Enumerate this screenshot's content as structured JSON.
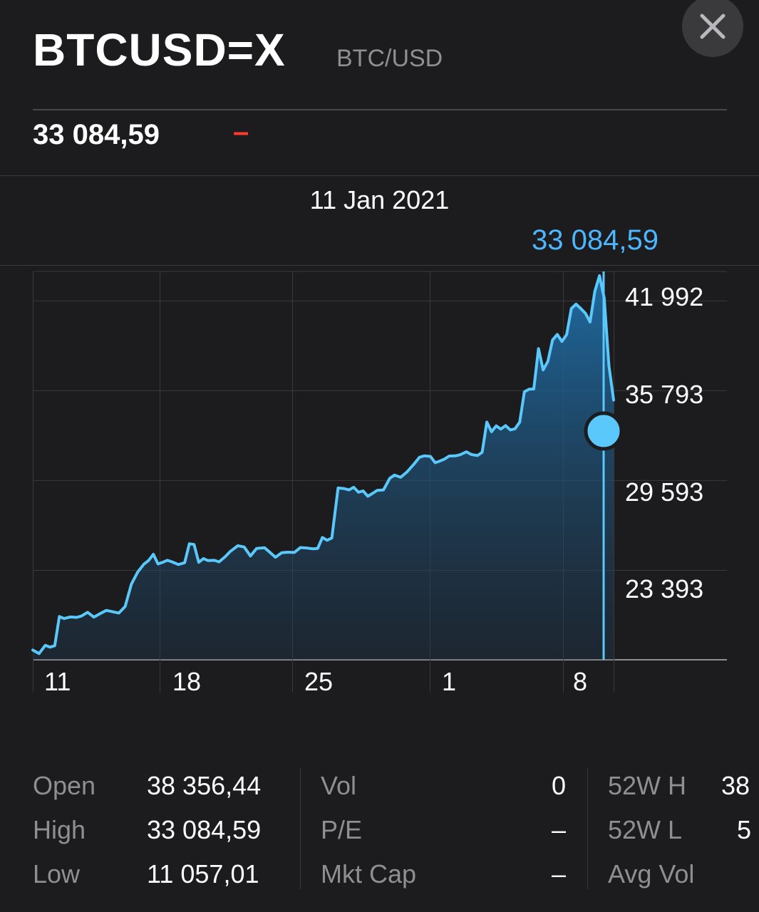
{
  "header": {
    "symbol": "BTCUSD=X",
    "company": "BTC/USD",
    "price": "33 084,59",
    "change": "–"
  },
  "selection": {
    "date": "11 Jan 2021",
    "value": "33 084,59"
  },
  "colors": {
    "accent": "#4db6ff",
    "negative": "#ff3b30",
    "background": "#1c1c1e"
  },
  "chart_data": {
    "type": "area",
    "x_tick_labels": [
      "11",
      "18",
      "25",
      "1",
      "8"
    ],
    "y_tick_labels": [
      "41 992",
      "35 793",
      "29 593",
      "23 393"
    ],
    "y_ticks": [
      41992,
      35793,
      29593,
      23393
    ],
    "ylim": [
      17193,
      44000
    ],
    "xlim_days": [
      0,
      36
    ],
    "grid": true,
    "selected_point": {
      "date": "11 Jan 2021",
      "value": 33084.59
    },
    "series": [
      {
        "values": [
          [
            0.0,
            17860
          ],
          [
            0.4,
            17620
          ],
          [
            0.8,
            18190
          ],
          [
            1.1,
            18070
          ],
          [
            1.4,
            18160
          ],
          [
            1.7,
            20180
          ],
          [
            2.0,
            20040
          ],
          [
            2.4,
            20150
          ],
          [
            2.8,
            20120
          ],
          [
            3.1,
            20210
          ],
          [
            3.5,
            20470
          ],
          [
            3.9,
            20140
          ],
          [
            4.3,
            20380
          ],
          [
            4.7,
            20600
          ],
          [
            5.1,
            20510
          ],
          [
            5.5,
            20420
          ],
          [
            5.9,
            20870
          ],
          [
            6.3,
            22420
          ],
          [
            6.7,
            23250
          ],
          [
            7.1,
            23800
          ],
          [
            7.4,
            24050
          ],
          [
            7.7,
            24480
          ],
          [
            8.0,
            23810
          ],
          [
            8.3,
            23920
          ],
          [
            8.6,
            24060
          ],
          [
            8.9,
            23950
          ],
          [
            9.3,
            23770
          ],
          [
            9.7,
            23890
          ],
          [
            10.0,
            25200
          ],
          [
            10.3,
            25150
          ],
          [
            10.6,
            23920
          ],
          [
            10.9,
            24180
          ],
          [
            11.2,
            24040
          ],
          [
            11.6,
            24060
          ],
          [
            11.9,
            23950
          ],
          [
            12.3,
            24320
          ],
          [
            12.6,
            24660
          ],
          [
            13.1,
            25070
          ],
          [
            13.5,
            24980
          ],
          [
            13.9,
            24360
          ],
          [
            14.3,
            24880
          ],
          [
            14.8,
            24930
          ],
          [
            15.2,
            24560
          ],
          [
            15.5,
            24270
          ],
          [
            15.9,
            24580
          ],
          [
            16.3,
            24620
          ],
          [
            16.7,
            24600
          ],
          [
            17.1,
            24940
          ],
          [
            17.5,
            24910
          ],
          [
            17.9,
            24850
          ],
          [
            18.2,
            24880
          ],
          [
            18.5,
            25640
          ],
          [
            18.8,
            25440
          ],
          [
            19.1,
            25600
          ],
          [
            19.5,
            29050
          ],
          [
            19.9,
            29010
          ],
          [
            20.2,
            28920
          ],
          [
            20.5,
            29100
          ],
          [
            20.8,
            28760
          ],
          [
            21.1,
            28850
          ],
          [
            21.4,
            28480
          ],
          [
            21.7,
            28680
          ],
          [
            22.0,
            28890
          ],
          [
            22.4,
            28920
          ],
          [
            22.8,
            29720
          ],
          [
            23.1,
            29940
          ],
          [
            23.5,
            29790
          ],
          [
            23.9,
            30160
          ],
          [
            24.3,
            30640
          ],
          [
            24.7,
            31170
          ],
          [
            25.0,
            31270
          ],
          [
            25.4,
            31230
          ],
          [
            25.7,
            30800
          ],
          [
            26.0,
            30910
          ],
          [
            26.3,
            31050
          ],
          [
            26.6,
            31260
          ],
          [
            27.0,
            31270
          ],
          [
            27.3,
            31350
          ],
          [
            27.7,
            31550
          ],
          [
            28.0,
            31370
          ],
          [
            28.4,
            31290
          ],
          [
            28.7,
            31510
          ],
          [
            29.0,
            33600
          ],
          [
            29.3,
            32940
          ],
          [
            29.6,
            33340
          ],
          [
            29.9,
            33120
          ],
          [
            30.2,
            33360
          ],
          [
            30.5,
            33060
          ],
          [
            30.8,
            33140
          ],
          [
            31.1,
            33590
          ],
          [
            31.4,
            35690
          ],
          [
            31.7,
            35870
          ],
          [
            32.0,
            35890
          ],
          [
            32.3,
            38680
          ],
          [
            32.6,
            37200
          ],
          [
            32.9,
            37790
          ],
          [
            33.2,
            39270
          ],
          [
            33.5,
            39650
          ],
          [
            33.8,
            39170
          ],
          [
            34.1,
            39640
          ],
          [
            34.4,
            41440
          ],
          [
            34.7,
            41740
          ],
          [
            35.0,
            41440
          ],
          [
            35.3,
            41110
          ],
          [
            35.6,
            40510
          ],
          [
            35.9,
            42630
          ],
          [
            36.2,
            43710
          ],
          [
            36.5,
            42170
          ],
          [
            36.8,
            37500
          ],
          [
            37.1,
            35120
          ]
        ]
      }
    ]
  },
  "stats": {
    "columns": [
      [
        {
          "label": "Open",
          "value": "38 356,44"
        },
        {
          "label": "High",
          "value": "33 084,59"
        },
        {
          "label": "Low",
          "value": "11 057,01"
        }
      ],
      [
        {
          "label": "Vol",
          "value": "0"
        },
        {
          "label": "P/E",
          "value": "–"
        },
        {
          "label": "Mkt Cap",
          "value": "–"
        }
      ],
      [
        {
          "label": "52W H",
          "value": "38"
        },
        {
          "label": "52W L",
          "value": "5"
        },
        {
          "label": "Avg Vol",
          "value": ""
        }
      ]
    ]
  }
}
